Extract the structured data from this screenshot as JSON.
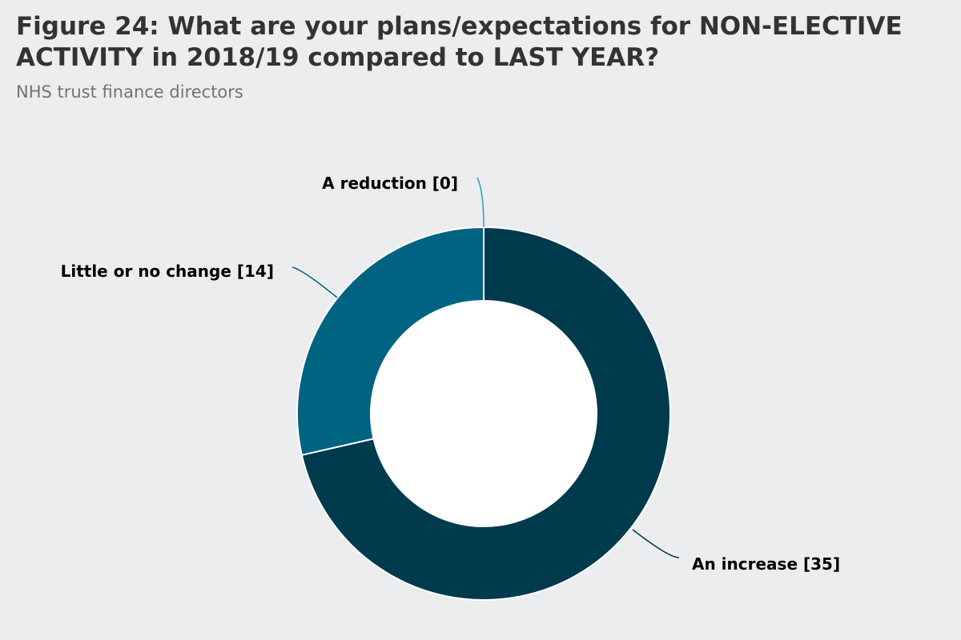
{
  "title": "Figure 24: What are your plans/expectations for NON-ELECTIVE ACTIVITY in 2018/19 compared to LAST YEAR?",
  "subtitle": "NHS trust finance directors",
  "chart_data": {
    "type": "pie",
    "variant": "donut",
    "categories": [
      "An increase",
      "Little or no change",
      "A reduction"
    ],
    "values": [
      35,
      14,
      0
    ],
    "labels": [
      "An increase [35]",
      "Little or no change [14]",
      "A reduction [0]"
    ],
    "colors": [
      "#003a4d",
      "#006382",
      "#2a9fc4"
    ],
    "slice_border_color": "#ffffff",
    "legend": "none"
  }
}
